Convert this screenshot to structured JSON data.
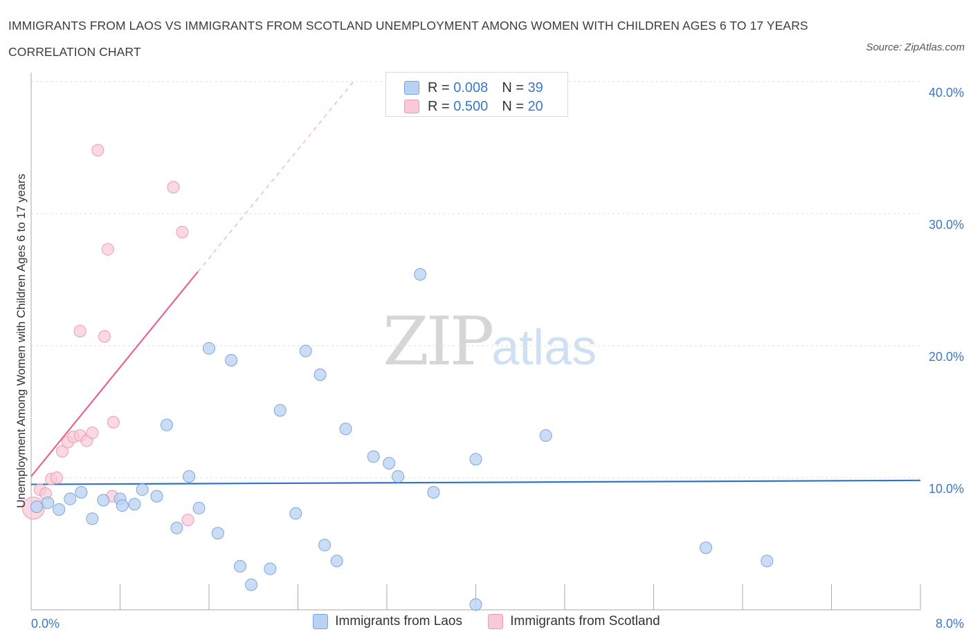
{
  "title": "IMMIGRANTS FROM LAOS VS IMMIGRANTS FROM SCOTLAND UNEMPLOYMENT AMONG WOMEN WITH CHILDREN AGES 6 TO 17 YEARS CORRELATION CHART",
  "source": "Source: ZipAtlas.com",
  "watermark": {
    "zip": "ZIP",
    "atlas": "atlas"
  },
  "stats": {
    "laos": {
      "r_label": "R = ",
      "r": "0.008",
      "n_label": "N = ",
      "n": "39"
    },
    "scotland": {
      "r_label": "R = ",
      "r": "0.500",
      "n_label": "N = ",
      "n": "20"
    }
  },
  "colors": {
    "laos_fill": "#b8d2f2",
    "laos_stroke": "#7aa6dd",
    "laos_line": "#2f74c6",
    "scot_fill": "#f8c9d6",
    "scot_stroke": "#ee9ab1",
    "scot_line": "#e8648e"
  },
  "chart_data": {
    "type": "scatter",
    "title": "IMMIGRANTS FROM LAOS VS IMMIGRANTS FROM SCOTLAND UNEMPLOYMENT AMONG WOMEN WITH CHILDREN AGES 6 TO 17 YEARS CORRELATION CHART",
    "xlabel": "",
    "ylabel": "Unemployment Among Women with Children Ages 6 to 17 years",
    "xlim": [
      0,
      8
    ],
    "ylim": [
      0,
      40
    ],
    "y_ticks": [
      10,
      20,
      30,
      40
    ],
    "y_tick_labels": [
      "10.0%",
      "20.0%",
      "30.0%",
      "40.0%"
    ],
    "x_tick_labels": [
      "0.0%",
      "8.0%"
    ],
    "legend": [
      "Immigrants from Laos",
      "Immigrants from Scotland"
    ],
    "series": [
      {
        "name": "Immigrants from Laos",
        "trend": {
          "x": [
            0,
            8
          ],
          "y": [
            9.5,
            9.8
          ]
        },
        "points": [
          {
            "x": 0.05,
            "y": 7.8
          },
          {
            "x": 0.15,
            "y": 8.1
          },
          {
            "x": 0.25,
            "y": 7.6
          },
          {
            "x": 0.35,
            "y": 8.4
          },
          {
            "x": 0.45,
            "y": 8.9
          },
          {
            "x": 0.55,
            "y": 6.9
          },
          {
            "x": 0.65,
            "y": 8.3
          },
          {
            "x": 0.8,
            "y": 8.4
          },
          {
            "x": 0.82,
            "y": 7.9
          },
          {
            "x": 0.93,
            "y": 8.0
          },
          {
            "x": 1.0,
            "y": 9.1
          },
          {
            "x": 1.13,
            "y": 8.6
          },
          {
            "x": 1.22,
            "y": 14.0
          },
          {
            "x": 1.31,
            "y": 6.2
          },
          {
            "x": 1.42,
            "y": 10.1
          },
          {
            "x": 1.51,
            "y": 7.7
          },
          {
            "x": 1.6,
            "y": 19.8
          },
          {
            "x": 1.68,
            "y": 5.8
          },
          {
            "x": 1.8,
            "y": 18.9
          },
          {
            "x": 1.88,
            "y": 3.3
          },
          {
            "x": 1.98,
            "y": 1.9
          },
          {
            "x": 2.15,
            "y": 3.1
          },
          {
            "x": 2.24,
            "y": 15.1
          },
          {
            "x": 2.38,
            "y": 7.3
          },
          {
            "x": 2.47,
            "y": 19.6
          },
          {
            "x": 2.6,
            "y": 17.8
          },
          {
            "x": 2.64,
            "y": 4.9
          },
          {
            "x": 2.75,
            "y": 3.7
          },
          {
            "x": 2.83,
            "y": 13.7
          },
          {
            "x": 3.08,
            "y": 11.6
          },
          {
            "x": 3.22,
            "y": 11.1
          },
          {
            "x": 3.3,
            "y": 10.1
          },
          {
            "x": 3.5,
            "y": 25.4
          },
          {
            "x": 3.62,
            "y": 8.9
          },
          {
            "x": 4.0,
            "y": 0.4
          },
          {
            "x": 4.0,
            "y": 11.4
          },
          {
            "x": 4.63,
            "y": 13.2
          },
          {
            "x": 6.07,
            "y": 4.7
          },
          {
            "x": 6.62,
            "y": 3.7
          }
        ]
      },
      {
        "name": "Immigrants from Scotland",
        "trend": {
          "x": [
            0,
            1.5
          ],
          "y": [
            10.1,
            25.6
          ]
        },
        "trend_extension": {
          "x": [
            1.5,
            2.9
          ],
          "y": [
            25.6,
            40.0
          ]
        },
        "points": [
          {
            "x": 0.02,
            "y": 7.7
          },
          {
            "x": 0.08,
            "y": 9.1
          },
          {
            "x": 0.13,
            "y": 8.8
          },
          {
            "x": 0.18,
            "y": 9.9
          },
          {
            "x": 0.23,
            "y": 10.0
          },
          {
            "x": 0.28,
            "y": 12.0
          },
          {
            "x": 0.33,
            "y": 12.7
          },
          {
            "x": 0.38,
            "y": 13.1
          },
          {
            "x": 0.44,
            "y": 13.2
          },
          {
            "x": 0.5,
            "y": 12.8
          },
          {
            "x": 0.55,
            "y": 13.4
          },
          {
            "x": 0.44,
            "y": 21.1
          },
          {
            "x": 0.6,
            "y": 34.8
          },
          {
            "x": 0.69,
            "y": 27.3
          },
          {
            "x": 0.66,
            "y": 20.7
          },
          {
            "x": 0.74,
            "y": 14.2
          },
          {
            "x": 0.73,
            "y": 8.6
          },
          {
            "x": 1.28,
            "y": 32.0
          },
          {
            "x": 1.36,
            "y": 28.6
          },
          {
            "x": 1.41,
            "y": 6.8
          }
        ]
      }
    ]
  },
  "legend": {
    "laos": "Immigrants from Laos",
    "scotland": "Immigrants from Scotland"
  }
}
